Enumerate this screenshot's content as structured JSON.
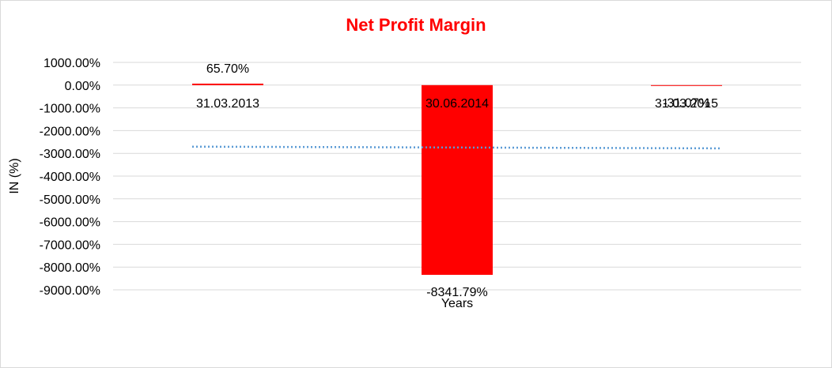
{
  "chart_data": {
    "type": "bar",
    "title": "Net Profit Margin",
    "xlabel": "Years",
    "ylabel": "IN (%)",
    "categories": [
      "31.03.2013",
      "30.06.2014",
      "31.03.2015"
    ],
    "values": [
      65.7,
      -8341.79,
      -31.07
    ],
    "data_labels": [
      "65.70%",
      "-8341.79%",
      "-31.07%"
    ],
    "ylim": [
      -9000,
      1000
    ],
    "yticks": [
      1000,
      0,
      -1000,
      -2000,
      -3000,
      -4000,
      -5000,
      -6000,
      -7000,
      -8000,
      -9000
    ],
    "ytick_labels": [
      "1000.00%",
      "0.00%",
      "-1000.00%",
      "-2000.00%",
      "-3000.00%",
      "-4000.00%",
      "-5000.00%",
      "-6000.00%",
      "-7000.00%",
      "-8000.00%",
      "-9000.00%"
    ],
    "grid": true,
    "legend": "none",
    "trendline": {
      "type": "linear",
      "style": "dotted",
      "values": [
        -2705,
        -2740,
        -2780
      ]
    },
    "colors": {
      "bar": "#ff0000",
      "title": "#ff0000",
      "grid": "#d9d9d9",
      "trendline": "#5b9bd5"
    }
  }
}
